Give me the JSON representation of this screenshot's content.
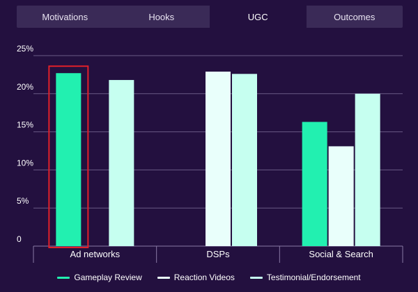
{
  "tabs": [
    {
      "label": "Motivations",
      "active": false
    },
    {
      "label": "Hooks",
      "active": false
    },
    {
      "label": "UGC",
      "active": true
    },
    {
      "label": "Outcomes",
      "active": false
    }
  ],
  "colors": {
    "background": "#23103f",
    "tab_bar": "#3a2a57",
    "gameplay": "#22f0b0",
    "reaction": "#e9fffb",
    "testimonial": "#c6fff0",
    "grid": "#6a5a86",
    "highlight": "#e0202a"
  },
  "chart_data": {
    "type": "bar",
    "categories": [
      "Ad networks",
      "DSPs",
      "Social & Search"
    ],
    "y_ticks": [
      "0",
      "5%",
      "10%",
      "15%",
      "20%",
      "25%"
    ],
    "ylim": [
      0,
      25
    ],
    "series": [
      {
        "name": "Gameplay Review",
        "color_key": "gameplay",
        "values": [
          22.7,
          null,
          16.3
        ]
      },
      {
        "name": "Reaction Videos",
        "color_key": "reaction",
        "values": [
          null,
          22.9,
          13.1
        ]
      },
      {
        "name": "Testimonial/Endorsement",
        "color_key": "testimonial",
        "values": [
          21.8,
          22.6,
          20.0
        ]
      }
    ],
    "highlight": {
      "category": "Ad networks",
      "series": "Gameplay Review"
    },
    "grid": true,
    "legend_position": "bottom"
  }
}
